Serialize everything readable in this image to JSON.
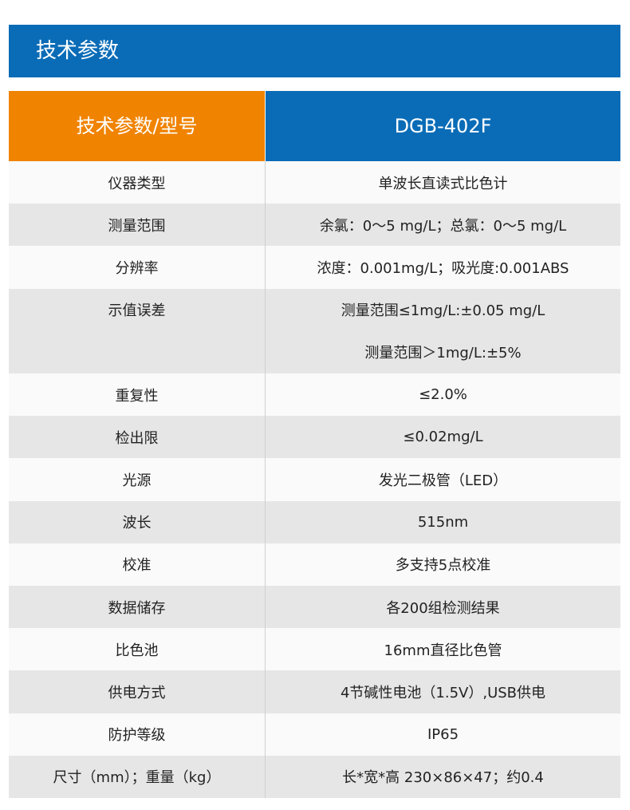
{
  "header": {
    "title": "技术参数"
  },
  "table": {
    "head": [
      "技术参数/型号",
      "DGB-402F"
    ],
    "rows": [
      {
        "param": "仪器类型",
        "value": [
          "单波长直读式比色计"
        ]
      },
      {
        "param": "测量范围",
        "value": [
          "余氯：0～5 mg/L；总氯：0～5 mg/L"
        ]
      },
      {
        "param": "分辨率",
        "value": [
          "浓度：0.001mg/L；吸光度:0.001ABS"
        ]
      },
      {
        "param": "示值误差",
        "value": [
          "测量范围≤1mg/L:±0.05 mg/L",
          "测量范围＞1mg/L:±5%"
        ]
      },
      {
        "param": "重复性",
        "value": [
          "≤2.0%"
        ]
      },
      {
        "param": "检出限",
        "value": [
          "≤0.02mg/L"
        ]
      },
      {
        "param": "光源",
        "value": [
          "发光二极管（LED）"
        ]
      },
      {
        "param": "波长",
        "value": [
          "515nm"
        ]
      },
      {
        "param": "校准",
        "value": [
          "多支持5点校准"
        ]
      },
      {
        "param": "数据储存",
        "value": [
          "各200组检测结果"
        ]
      },
      {
        "param": "比色池",
        "value": [
          "16mm直径比色管"
        ]
      },
      {
        "param": "供电方式",
        "value": [
          "4节碱性电池（1.5V）,USB供电"
        ]
      },
      {
        "param": "防护等级",
        "value": [
          "IP65"
        ]
      },
      {
        "param": "尺寸（mm）；重量（kg）",
        "value": [
          "长*宽*高 230×86×47；约0.4"
        ]
      }
    ]
  }
}
